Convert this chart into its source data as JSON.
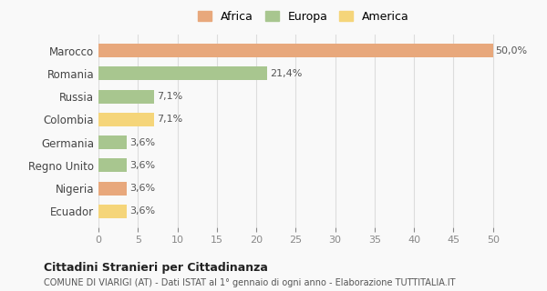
{
  "categories": [
    "Marocco",
    "Romania",
    "Russia",
    "Colombia",
    "Germania",
    "Regno Unito",
    "Nigeria",
    "Ecuador"
  ],
  "values": [
    50.0,
    21.4,
    7.1,
    7.1,
    3.6,
    3.6,
    3.6,
    3.6
  ],
  "labels": [
    "50,0%",
    "21,4%",
    "7,1%",
    "7,1%",
    "3,6%",
    "3,6%",
    "3,6%",
    "3,6%"
  ],
  "colors": [
    "#e8a87c",
    "#a8c68f",
    "#a8c68f",
    "#f5d57a",
    "#a8c68f",
    "#a8c68f",
    "#e8a87c",
    "#f5d57a"
  ],
  "legend": [
    {
      "label": "Africa",
      "color": "#e8a87c"
    },
    {
      "label": "Europa",
      "color": "#a8c68f"
    },
    {
      "label": "America",
      "color": "#f5d57a"
    }
  ],
  "xlim": [
    0,
    52
  ],
  "xticks": [
    0,
    5,
    10,
    15,
    20,
    25,
    30,
    35,
    40,
    45,
    50
  ],
  "title1": "Cittadini Stranieri per Cittadinanza",
  "title2": "COMUNE DI VIARIGI (AT) - Dati ISTAT al 1° gennaio di ogni anno - Elaborazione TUTTITALIA.IT",
  "background_color": "#f9f9f9",
  "grid_color": "#dddddd"
}
